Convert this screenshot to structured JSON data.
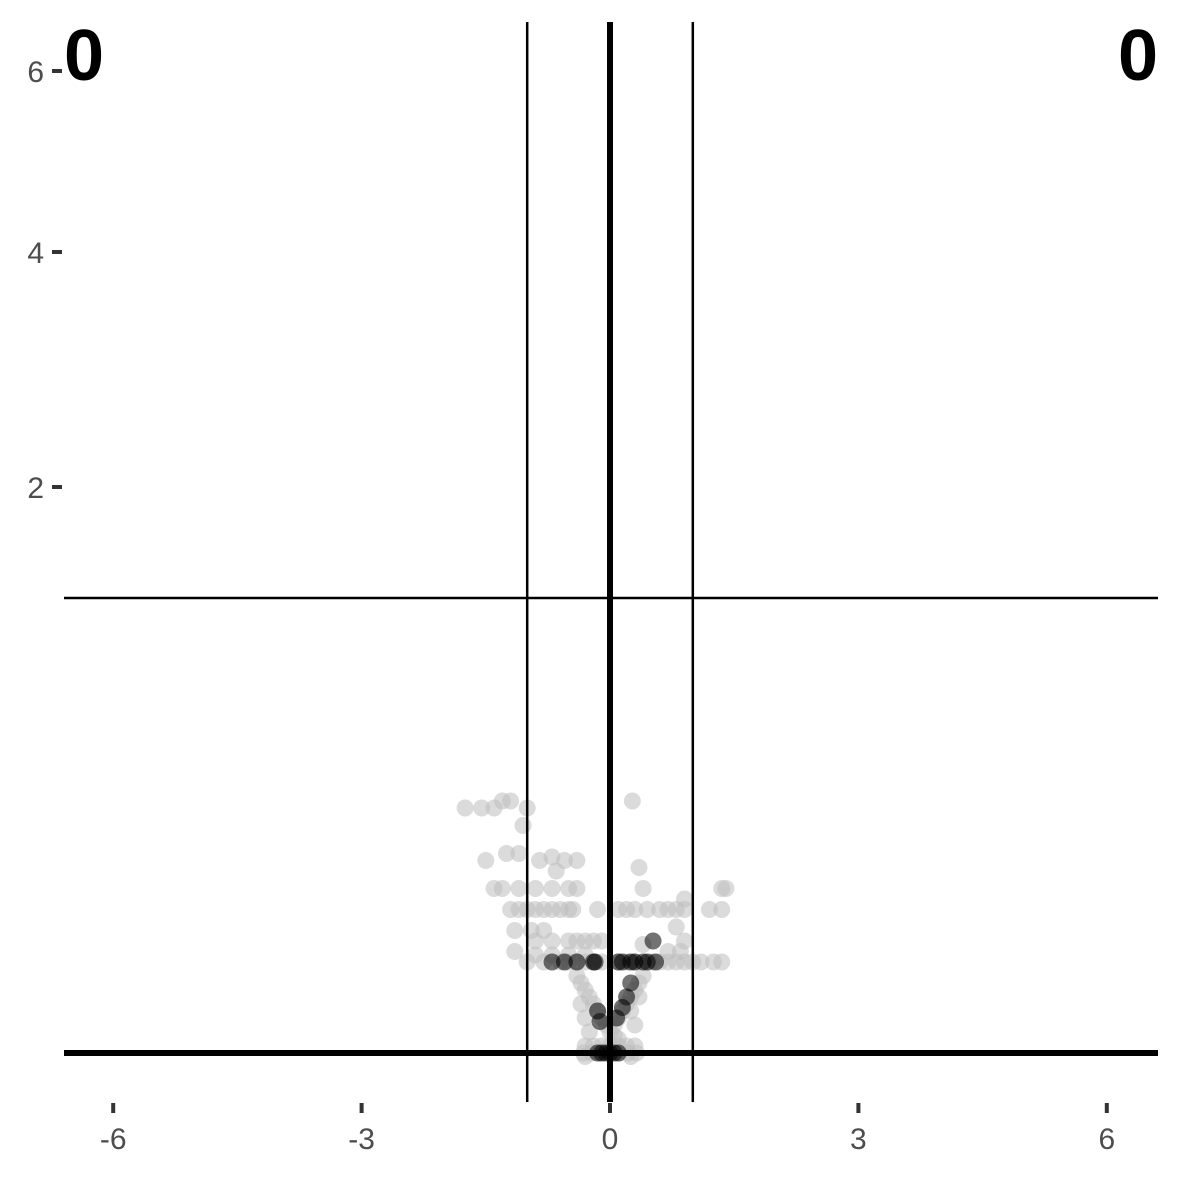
{
  "chart_data": {
    "type": "scatter",
    "title": "",
    "xlabel": "",
    "ylabel": "",
    "xlim": [
      -6.6,
      6.6
    ],
    "ylim": [
      -0.1,
      6.2
    ],
    "x_ticks": [
      -6,
      -3,
      0,
      3,
      6
    ],
    "x_tick_labels": [
      "-6",
      "-3",
      "0",
      "3",
      "6"
    ],
    "y_ticks": [
      2,
      4,
      6
    ],
    "y_tick_labels": [
      "2",
      "4",
      "6"
    ],
    "grid": false,
    "reference_lines": {
      "vertical_thick": 0,
      "vertical_thin": [
        -1,
        1
      ],
      "horizontal_thick": 0,
      "horizontal_thin": 1.3
    },
    "corner_labels": {
      "top_left": "0",
      "top_right": "0"
    },
    "colors": {
      "background": "#ffffff",
      "not_significant": "#bebebe",
      "highlighted": "#000000",
      "lines": "#000000",
      "tick_text": "#4d4d4d"
    },
    "series": [
      {
        "color": "#bebebe",
        "points": [
          [
            -1.75,
            0.7
          ],
          [
            -1.55,
            0.7
          ],
          [
            -1.4,
            0.7
          ],
          [
            -1.3,
            0.72
          ],
          [
            -1.2,
            0.72
          ],
          [
            -1.0,
            0.7
          ],
          [
            -1.05,
            0.65
          ],
          [
            0.27,
            0.72
          ],
          [
            -1.5,
            0.55
          ],
          [
            -1.25,
            0.57
          ],
          [
            -1.1,
            0.57
          ],
          [
            -0.7,
            0.56
          ],
          [
            -0.55,
            0.55
          ],
          [
            -0.85,
            0.55
          ],
          [
            -0.65,
            0.52
          ],
          [
            -0.4,
            0.55
          ],
          [
            0.35,
            0.53
          ],
          [
            -1.4,
            0.47
          ],
          [
            -1.3,
            0.47
          ],
          [
            -1.1,
            0.47
          ],
          [
            -0.9,
            0.47
          ],
          [
            -0.7,
            0.47
          ],
          [
            -0.5,
            0.47
          ],
          [
            -0.4,
            0.47
          ],
          [
            0.4,
            0.47
          ],
          [
            1.4,
            0.47
          ],
          [
            1.35,
            0.47
          ],
          [
            -1.2,
            0.41
          ],
          [
            -1.1,
            0.41
          ],
          [
            -1.0,
            0.41
          ],
          [
            -0.9,
            0.41
          ],
          [
            -0.8,
            0.41
          ],
          [
            -0.7,
            0.41
          ],
          [
            -0.6,
            0.41
          ],
          [
            -0.5,
            0.41
          ],
          [
            -0.45,
            0.41
          ],
          [
            -0.15,
            0.41
          ],
          [
            0.1,
            0.41
          ],
          [
            0.2,
            0.41
          ],
          [
            0.3,
            0.41
          ],
          [
            0.45,
            0.41
          ],
          [
            0.6,
            0.41
          ],
          [
            0.7,
            0.41
          ],
          [
            0.8,
            0.41
          ],
          [
            0.9,
            0.41
          ],
          [
            1.2,
            0.41
          ],
          [
            1.35,
            0.41
          ],
          [
            0.9,
            0.44
          ],
          [
            -1.15,
            0.35
          ],
          [
            -0.95,
            0.35
          ],
          [
            -0.8,
            0.35
          ],
          [
            0.8,
            0.36
          ],
          [
            -0.9,
            0.32
          ],
          [
            -0.7,
            0.32
          ],
          [
            -0.5,
            0.32
          ],
          [
            -0.4,
            0.32
          ],
          [
            -0.3,
            0.32
          ],
          [
            -0.2,
            0.32
          ],
          [
            -0.1,
            0.32
          ],
          [
            0.9,
            0.32
          ],
          [
            0.4,
            0.31
          ],
          [
            -1.15,
            0.29
          ],
          [
            -0.9,
            0.28
          ],
          [
            -0.7,
            0.28
          ],
          [
            -0.5,
            0.28
          ],
          [
            -0.3,
            0.28
          ],
          [
            0.7,
            0.29
          ],
          [
            0.85,
            0.29
          ],
          [
            -1.0,
            0.26
          ],
          [
            -0.8,
            0.26
          ],
          [
            -0.6,
            0.26
          ],
          [
            -0.5,
            0.26
          ],
          [
            -0.4,
            0.26
          ],
          [
            -0.3,
            0.26
          ],
          [
            -0.2,
            0.26
          ],
          [
            -0.1,
            0.26
          ],
          [
            0.1,
            0.26
          ],
          [
            0.2,
            0.26
          ],
          [
            0.3,
            0.26
          ],
          [
            0.5,
            0.26
          ],
          [
            0.6,
            0.26
          ],
          [
            0.7,
            0.26
          ],
          [
            0.8,
            0.26
          ],
          [
            0.9,
            0.26
          ],
          [
            1.0,
            0.26
          ],
          [
            1.1,
            0.26
          ],
          [
            1.25,
            0.26
          ],
          [
            1.35,
            0.26
          ],
          [
            -0.4,
            0.22
          ],
          [
            -0.35,
            0.2
          ],
          [
            -0.3,
            0.18
          ],
          [
            -0.25,
            0.16
          ],
          [
            -0.2,
            0.14
          ],
          [
            -0.15,
            0.12
          ],
          [
            -0.1,
            0.1
          ],
          [
            -0.05,
            0.08
          ],
          [
            0.0,
            0.06
          ],
          [
            0.05,
            0.05
          ],
          [
            0.1,
            0.04
          ],
          [
            0.4,
            0.22
          ],
          [
            0.35,
            0.2
          ],
          [
            0.3,
            0.18
          ],
          [
            0.25,
            0.16
          ],
          [
            0.2,
            0.14
          ],
          [
            0.15,
            0.12
          ],
          [
            0.1,
            0.1
          ],
          [
            0.05,
            0.08
          ],
          [
            -0.35,
            0.14
          ],
          [
            -0.3,
            0.1
          ],
          [
            -0.25,
            0.06
          ],
          [
            -0.3,
            0.02
          ],
          [
            -0.2,
            0.02
          ],
          [
            -0.1,
            0.02
          ],
          [
            0.0,
            0.02
          ],
          [
            0.1,
            0.02
          ],
          [
            0.2,
            0.02
          ],
          [
            0.3,
            0.02
          ],
          [
            0.3,
            0.08
          ],
          [
            0.25,
            0.12
          ],
          [
            0.35,
            0.16
          ],
          [
            -0.32,
            0.0
          ],
          [
            -0.22,
            0.0
          ],
          [
            -0.12,
            0.0
          ],
          [
            0.12,
            0.0
          ],
          [
            0.22,
            0.0
          ],
          [
            0.32,
            0.0
          ],
          [
            -0.3,
            -0.01
          ],
          [
            0.25,
            -0.01
          ]
        ]
      },
      {
        "color": "#000000",
        "points": [
          [
            -0.7,
            0.26
          ],
          [
            -0.55,
            0.26
          ],
          [
            -0.4,
            0.26
          ],
          [
            -0.2,
            0.26
          ],
          [
            -0.18,
            0.26
          ],
          [
            0.1,
            0.26
          ],
          [
            0.15,
            0.26
          ],
          [
            0.25,
            0.26
          ],
          [
            0.3,
            0.26
          ],
          [
            0.4,
            0.26
          ],
          [
            0.45,
            0.26
          ],
          [
            0.55,
            0.26
          ],
          [
            0.52,
            0.32
          ],
          [
            0.25,
            0.2
          ],
          [
            0.2,
            0.16
          ],
          [
            0.15,
            0.13
          ],
          [
            0.08,
            0.1
          ],
          [
            -0.15,
            0.12
          ],
          [
            -0.12,
            0.09
          ],
          [
            -0.15,
            0.0
          ],
          [
            -0.1,
            0.0
          ],
          [
            -0.05,
            0.0
          ],
          [
            0.0,
            0.0
          ],
          [
            0.05,
            0.0
          ],
          [
            0.1,
            0.0
          ]
        ]
      }
    ]
  }
}
